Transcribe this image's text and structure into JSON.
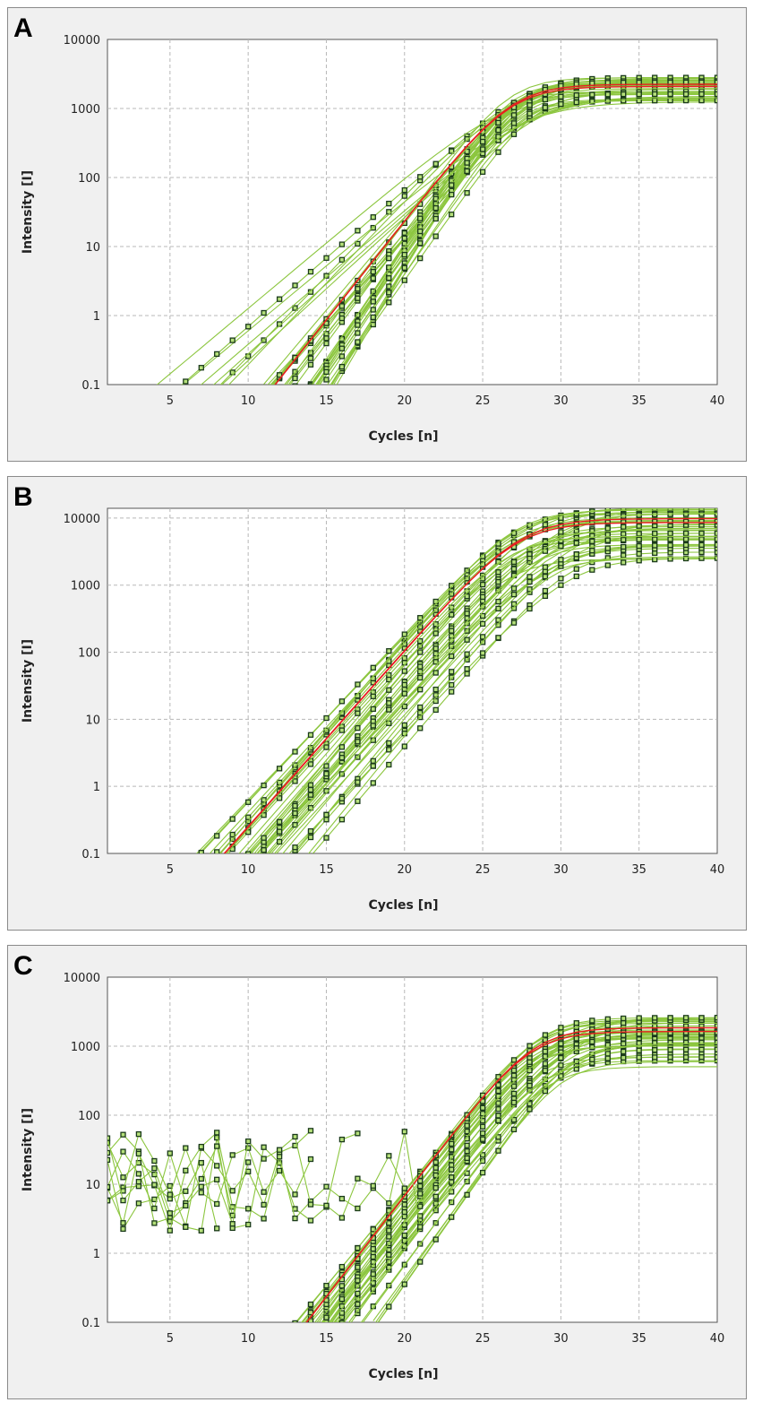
{
  "panels": [
    {
      "letter": "A"
    },
    {
      "letter": "B"
    },
    {
      "letter": "C"
    }
  ],
  "chart_data": [
    {
      "type": "line",
      "panel": "A",
      "xlabel": "Cycles [n]",
      "ylabel": "Intensity [I]",
      "x_range": [
        1,
        40
      ],
      "y_scale": "log",
      "y_range": [
        0.1,
        10000
      ],
      "x_ticks": [
        5,
        10,
        15,
        20,
        25,
        30,
        35,
        40
      ],
      "y_ticks": [
        0.1,
        1,
        10,
        100,
        1000,
        10000
      ],
      "y_tick_labels": [
        "0.1",
        "1",
        "10",
        "100",
        "1000",
        "10000"
      ],
      "grid": true,
      "colors": {
        "curve": "#8cc63f",
        "highlight": "#e8201f",
        "marker": "#1a3a1a"
      },
      "curve_model": {
        "plateau_range": [
          1200,
          2800
        ],
        "midpoint_range": [
          26.5,
          28.5
        ],
        "slope_range": [
          0.42,
          0.9
        ]
      },
      "curves": 40,
      "highlight_curves": 2,
      "noise_curves": 0
    },
    {
      "type": "line",
      "panel": "B",
      "xlabel": "Cycles [n]",
      "ylabel": "Intensity [I]",
      "x_range": [
        1,
        40
      ],
      "y_scale": "log",
      "y_range": [
        0.1,
        14000
      ],
      "x_ticks": [
        5,
        10,
        15,
        20,
        25,
        30,
        35,
        40
      ],
      "y_ticks": [
        0.1,
        1,
        10,
        100,
        1000,
        10000
      ],
      "y_tick_labels": [
        "0.1",
        "1",
        "10",
        "100",
        "1000",
        "10000"
      ],
      "grid": true,
      "colors": {
        "curve": "#8cc63f",
        "highlight": "#e8201f",
        "marker": "#1a3a1a"
      },
      "curve_model": {
        "plateau_range": [
          2000,
          14000
        ],
        "midpoint_range": [
          26.5,
          31.5
        ],
        "slope_range": [
          0.55,
          0.66
        ]
      },
      "curves": 40,
      "highlight_curves": 2,
      "noise_curves": 0
    },
    {
      "type": "line",
      "panel": "C",
      "xlabel": "Cycles [n]",
      "ylabel": "Intensity [I]",
      "x_range": [
        1,
        40
      ],
      "y_scale": "log",
      "y_range": [
        0.1,
        10000
      ],
      "x_ticks": [
        5,
        10,
        15,
        20,
        25,
        30,
        35,
        40
      ],
      "y_ticks": [
        0.1,
        1,
        10,
        100,
        1000,
        10000
      ],
      "y_tick_labels": [
        "0.1",
        "1",
        "10",
        "100",
        "1000",
        "10000"
      ],
      "grid": true,
      "colors": {
        "curve": "#8cc63f",
        "highlight": "#e8201f",
        "marker": "#1a3a1a"
      },
      "curve_model": {
        "plateau_range": [
          450,
          2600
        ],
        "midpoint_range": [
          27.5,
          31.5
        ],
        "slope_range": [
          0.6,
          0.75
        ]
      },
      "curves": 40,
      "highlight_curves": 2,
      "noise_curves": 8,
      "noise_y_range": [
        2,
        60
      ]
    }
  ]
}
